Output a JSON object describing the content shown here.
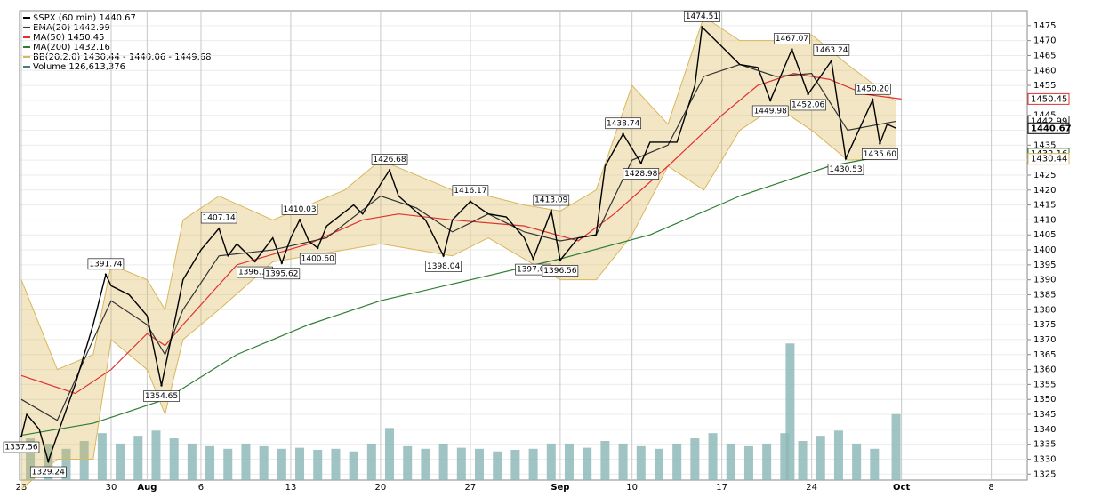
{
  "chart_data": {
    "type": "stock",
    "title": "$SPX (60 min) 1440.67",
    "xlim": [
      0,
      56
    ],
    "ylim": [
      1323,
      1480
    ],
    "y2lim": [
      0,
      900000000
    ],
    "xticks": [
      {
        "value": 0,
        "label": "23"
      },
      {
        "value": 5,
        "label": "30"
      },
      {
        "value": 7,
        "label": "Aug"
      },
      {
        "value": 10,
        "label": "6"
      },
      {
        "value": 15,
        "label": "13"
      },
      {
        "value": 20,
        "label": "20"
      },
      {
        "value": 25,
        "label": "27"
      },
      {
        "value": 30,
        "label": "Sep"
      },
      {
        "value": 34,
        "label": "10"
      },
      {
        "value": 39,
        "label": "17"
      },
      {
        "value": 44,
        "label": "24"
      },
      {
        "value": 49,
        "label": "Oct"
      },
      {
        "value": 54,
        "label": "8"
      }
    ],
    "yticks": [
      1325,
      1330,
      1335,
      1340,
      1345,
      1350,
      1355,
      1360,
      1365,
      1370,
      1375,
      1380,
      1385,
      1390,
      1395,
      1400,
      1405,
      1410,
      1415,
      1420,
      1425,
      1430,
      1435,
      1440,
      1445,
      1450,
      1455,
      1460,
      1465,
      1470,
      1475
    ],
    "grid": true,
    "series": [
      {
        "name": "$SPX (60 min) 1440.67",
        "color": "#000000",
        "x": [
          0,
          0.3,
          1,
          1.5,
          2,
          3,
          4,
          4.7,
          5,
          6,
          7,
          7.8,
          8.5,
          9,
          10,
          11,
          11.5,
          12,
          13,
          14,
          14.5,
          15,
          15.5,
          16,
          16.5,
          17,
          18.5,
          19,
          20,
          20.5,
          21,
          22.5,
          23.5,
          24,
          25,
          26,
          27,
          28,
          28.5,
          29.5,
          30,
          31,
          32,
          32.5,
          33.5,
          34.5,
          35,
          36.5,
          37.5,
          37.9,
          39,
          40,
          41,
          41.7,
          42.9,
          43.8,
          45.1,
          45.9,
          47.4,
          47.8,
          48.2,
          48.7
        ],
        "values": [
          1337.56,
          1345,
          1340,
          1329.24,
          1338,
          1355,
          1375,
          1391.74,
          1388,
          1385,
          1378,
          1354.65,
          1375,
          1390,
          1400,
          1407.14,
          1398,
          1402,
          1396.13,
          1404,
          1395.62,
          1404,
          1410.03,
          1403,
          1400.6,
          1408,
          1415,
          1412,
          1422,
          1426.68,
          1418,
          1410,
          1398.04,
          1410,
          1416.17,
          1412,
          1411,
          1404,
          1397.01,
          1413.09,
          1396.56,
          1404,
          1405,
          1428,
          1438.74,
          1428.98,
          1436,
          1436,
          1455,
          1474.51,
          1468,
          1462,
          1461,
          1449.98,
          1467.07,
          1452.06,
          1463.24,
          1430.53,
          1450.2,
          1435.6,
          1442,
          1440.67
        ]
      },
      {
        "name": "EMA(20) 1442.99",
        "color": "#333333",
        "x": [
          0,
          2,
          4,
          5,
          7,
          8,
          9,
          11,
          14,
          17,
          20,
          22,
          24,
          26,
          28,
          30,
          32,
          34,
          36,
          38,
          40,
          42,
          44,
          46,
          48.7
        ],
        "values": [
          1350,
          1343,
          1370,
          1383,
          1375,
          1365,
          1380,
          1398,
          1400,
          1404,
          1418,
          1414,
          1406,
          1412,
          1406,
          1403,
          1405,
          1430,
          1435,
          1458,
          1462,
          1458,
          1459,
          1440,
          1442.99
        ]
      },
      {
        "name": "MA(50) 1450.45",
        "color": "#e03030",
        "x": [
          0,
          3,
          5,
          7,
          8,
          9,
          12,
          16,
          19,
          21,
          24,
          28,
          31,
          33,
          36,
          39,
          41,
          43,
          45,
          47,
          49
        ],
        "values": [
          1358,
          1352,
          1360,
          1372,
          1368,
          1375,
          1395,
          1402,
          1410,
          1412,
          1410,
          1408,
          1403,
          1412,
          1428,
          1445,
          1455,
          1459,
          1457,
          1452,
          1450.45
        ]
      },
      {
        "name": "MA(200) 1432.16",
        "color": "#2e7d32",
        "x": [
          0,
          4,
          8,
          12,
          16,
          20,
          25,
          30,
          35,
          40,
          45,
          48.7
        ],
        "values": [
          1338,
          1342,
          1350,
          1365,
          1375,
          1383,
          1390,
          1397,
          1405,
          1418,
          1428,
          1432.16
        ]
      }
    ],
    "band": {
      "name": "BB(20,2.0) 1430.44 - 1440.06 - 1449.68",
      "color": "#d9b65a",
      "x": [
        0,
        2,
        4,
        5,
        7,
        8,
        9,
        11,
        14,
        18,
        20,
        22,
        24,
        26,
        28,
        30,
        32,
        34,
        36,
        38,
        40,
        42,
        44,
        46,
        48.7
      ],
      "upper": [
        1390,
        1360,
        1365,
        1395,
        1390,
        1380,
        1410,
        1418,
        1410,
        1420,
        1430,
        1425,
        1420,
        1418,
        1415,
        1413,
        1420,
        1455,
        1442,
        1478,
        1470,
        1470,
        1472,
        1462,
        1449.68
      ],
      "lower": [
        1320,
        1330,
        1330,
        1370,
        1360,
        1345,
        1370,
        1380,
        1396,
        1400,
        1402,
        1400,
        1398,
        1404,
        1397,
        1390,
        1390,
        1405,
        1428,
        1420,
        1440,
        1448,
        1440,
        1430,
        1430.44
      ]
    },
    "volume": {
      "name": "Volume 126,613,376",
      "color": "#8fb8b8",
      "axis": "y2",
      "x": [
        0.5,
        1.5,
        2.5,
        3.5,
        4.5,
        5.5,
        6.5,
        7.5,
        8.5,
        9.5,
        10.5,
        11.5,
        12.5,
        13.5,
        14.5,
        15.5,
        16.5,
        17.5,
        18.5,
        19.5,
        20.5,
        21.5,
        22.5,
        23.5,
        24.5,
        25.5,
        26.5,
        27.5,
        28.5,
        29.5,
        30.5,
        31.5,
        32.5,
        33.5,
        34.5,
        35.5,
        36.5,
        37.5,
        38.5,
        39.5,
        40.5,
        41.5,
        42.5,
        42.8,
        43.5,
        44.5,
        45.5,
        46.5,
        47.5,
        48.7
      ],
      "values": [
        80000000,
        70000000,
        60000000,
        75000000,
        90000000,
        70000000,
        85000000,
        95000000,
        80000000,
        70000000,
        65000000,
        60000000,
        70000000,
        65000000,
        60000000,
        62000000,
        58000000,
        60000000,
        55000000,
        70000000,
        100000000,
        65000000,
        60000000,
        70000000,
        62000000,
        60000000,
        55000000,
        58000000,
        60000000,
        70000000,
        70000000,
        62000000,
        75000000,
        70000000,
        65000000,
        60000000,
        70000000,
        80000000,
        90000000,
        70000000,
        65000000,
        70000000,
        90000000,
        262000000,
        75000000,
        85000000,
        95000000,
        70000000,
        60000000,
        126613376
      ]
    },
    "annotations": [
      {
        "x": 0,
        "value": 1337.56
      },
      {
        "x": 1.5,
        "value": 1329.24
      },
      {
        "x": 4.7,
        "value": 1391.74
      },
      {
        "x": 7.8,
        "value": 1354.65
      },
      {
        "x": 11,
        "value": 1407.14
      },
      {
        "x": 13,
        "value": 1396.13
      },
      {
        "x": 14.5,
        "value": 1395.62
      },
      {
        "x": 15.5,
        "value": 1410.03
      },
      {
        "x": 16.5,
        "value": 1400.6,
        "label": "1400.60"
      },
      {
        "x": 20.5,
        "value": 1426.68
      },
      {
        "x": 23.5,
        "value": 1398.04
      },
      {
        "x": 25,
        "value": 1416.17
      },
      {
        "x": 28.5,
        "value": 1397.01
      },
      {
        "x": 29.5,
        "value": 1413.09
      },
      {
        "x": 30,
        "value": 1396.56
      },
      {
        "x": 33.5,
        "value": 1438.74
      },
      {
        "x": 34.5,
        "value": 1428.98
      },
      {
        "x": 37.9,
        "value": 1474.51
      },
      {
        "x": 41.7,
        "value": 1449.98
      },
      {
        "x": 42.9,
        "value": 1467.07
      },
      {
        "x": 43.8,
        "value": 1452.06
      },
      {
        "x": 45.1,
        "value": 1463.24
      },
      {
        "x": 45.9,
        "value": 1430.53
      },
      {
        "x": 47.4,
        "value": 1450.2,
        "label": "1450.20"
      },
      {
        "x": 47.8,
        "value": 1435.6,
        "label": "1435.60"
      }
    ],
    "last_values": [
      {
        "value": 1450.45,
        "color": "#e03030"
      },
      {
        "value": 1442.99,
        "color": "#333333"
      },
      {
        "value": 1440.67,
        "color": "#000000"
      },
      {
        "value": 1432.16,
        "color": "#2e7d32"
      },
      {
        "value": 1430.44,
        "color": "#d9b65a"
      }
    ]
  }
}
